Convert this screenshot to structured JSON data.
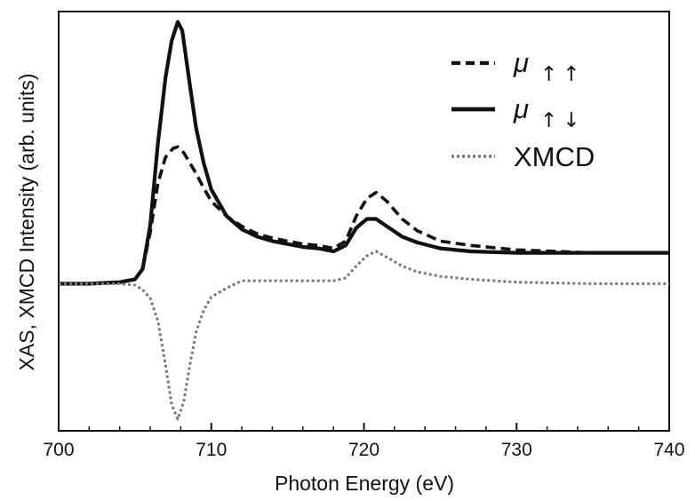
{
  "chart_data": {
    "type": "line",
    "title": "",
    "xlabel": "Photon Energy (eV)",
    "ylabel": "XAS, XMCD Intensity (arb. units)",
    "xlim": [
      700,
      740
    ],
    "ylim": [
      -1.0,
      1.85
    ],
    "xticks": [
      700,
      710,
      720,
      730,
      740
    ],
    "xtick_labels": [
      "700",
      "710",
      "720",
      "730",
      "740"
    ],
    "grid": false,
    "legend_position": "top-right",
    "series": [
      {
        "name": "μ ↑↑",
        "name_main": "μ",
        "name_sub": "↑↑",
        "style": "dashed",
        "color": "#111111",
        "x": [
          700,
          702,
          704,
          705,
          705.5,
          706,
          706.5,
          707,
          707.5,
          707.8,
          708.2,
          708.6,
          709,
          709.5,
          710,
          711,
          712,
          713,
          714,
          715,
          716,
          717,
          718,
          718.8,
          719.5,
          720.2,
          720.8,
          721.5,
          722.5,
          723.5,
          725,
          727,
          730,
          735,
          740
        ],
        "y": [
          0.0,
          0.0,
          0.01,
          0.03,
          0.1,
          0.35,
          0.68,
          0.86,
          0.92,
          0.93,
          0.89,
          0.82,
          0.75,
          0.65,
          0.56,
          0.46,
          0.39,
          0.34,
          0.31,
          0.29,
          0.27,
          0.26,
          0.24,
          0.29,
          0.46,
          0.58,
          0.62,
          0.56,
          0.44,
          0.36,
          0.29,
          0.26,
          0.23,
          0.21,
          0.21
        ]
      },
      {
        "name": "μ ↑↓",
        "name_main": "μ",
        "name_sub": "↑↓",
        "style": "solid",
        "color": "#111111",
        "x": [
          700,
          702,
          704,
          705,
          705.5,
          706,
          706.5,
          707,
          707.4,
          707.8,
          708.1,
          708.5,
          709,
          709.5,
          710,
          711,
          712,
          713,
          714,
          715,
          716,
          717,
          718,
          718.8,
          719.5,
          720.2,
          720.8,
          721.5,
          722.5,
          723.5,
          725,
          727,
          730,
          735,
          740
        ],
        "y": [
          0.0,
          0.0,
          0.01,
          0.03,
          0.1,
          0.4,
          0.95,
          1.4,
          1.65,
          1.78,
          1.72,
          1.42,
          1.06,
          0.82,
          0.64,
          0.46,
          0.37,
          0.32,
          0.29,
          0.27,
          0.25,
          0.24,
          0.22,
          0.26,
          0.38,
          0.44,
          0.44,
          0.39,
          0.32,
          0.28,
          0.24,
          0.22,
          0.21,
          0.21,
          0.21
        ]
      },
      {
        "name": "XMCD",
        "style": "dotted",
        "color": "#777777",
        "x": [
          700,
          702,
          704,
          705,
          705.5,
          706,
          706.5,
          707,
          707.4,
          707.8,
          708.2,
          708.6,
          709,
          709.5,
          710,
          711,
          712,
          714,
          716,
          718,
          718.8,
          719.5,
          720.2,
          720.8,
          721.5,
          722.5,
          723.5,
          725,
          727,
          730,
          735,
          740
        ],
        "y": [
          0.0,
          0.0,
          0.0,
          -0.01,
          -0.04,
          -0.1,
          -0.25,
          -0.55,
          -0.82,
          -0.92,
          -0.8,
          -0.55,
          -0.33,
          -0.18,
          -0.09,
          -0.03,
          0.02,
          0.02,
          0.02,
          0.02,
          0.04,
          0.12,
          0.19,
          0.22,
          0.18,
          0.12,
          0.08,
          0.05,
          0.03,
          0.01,
          0.0,
          0.0
        ]
      }
    ]
  }
}
